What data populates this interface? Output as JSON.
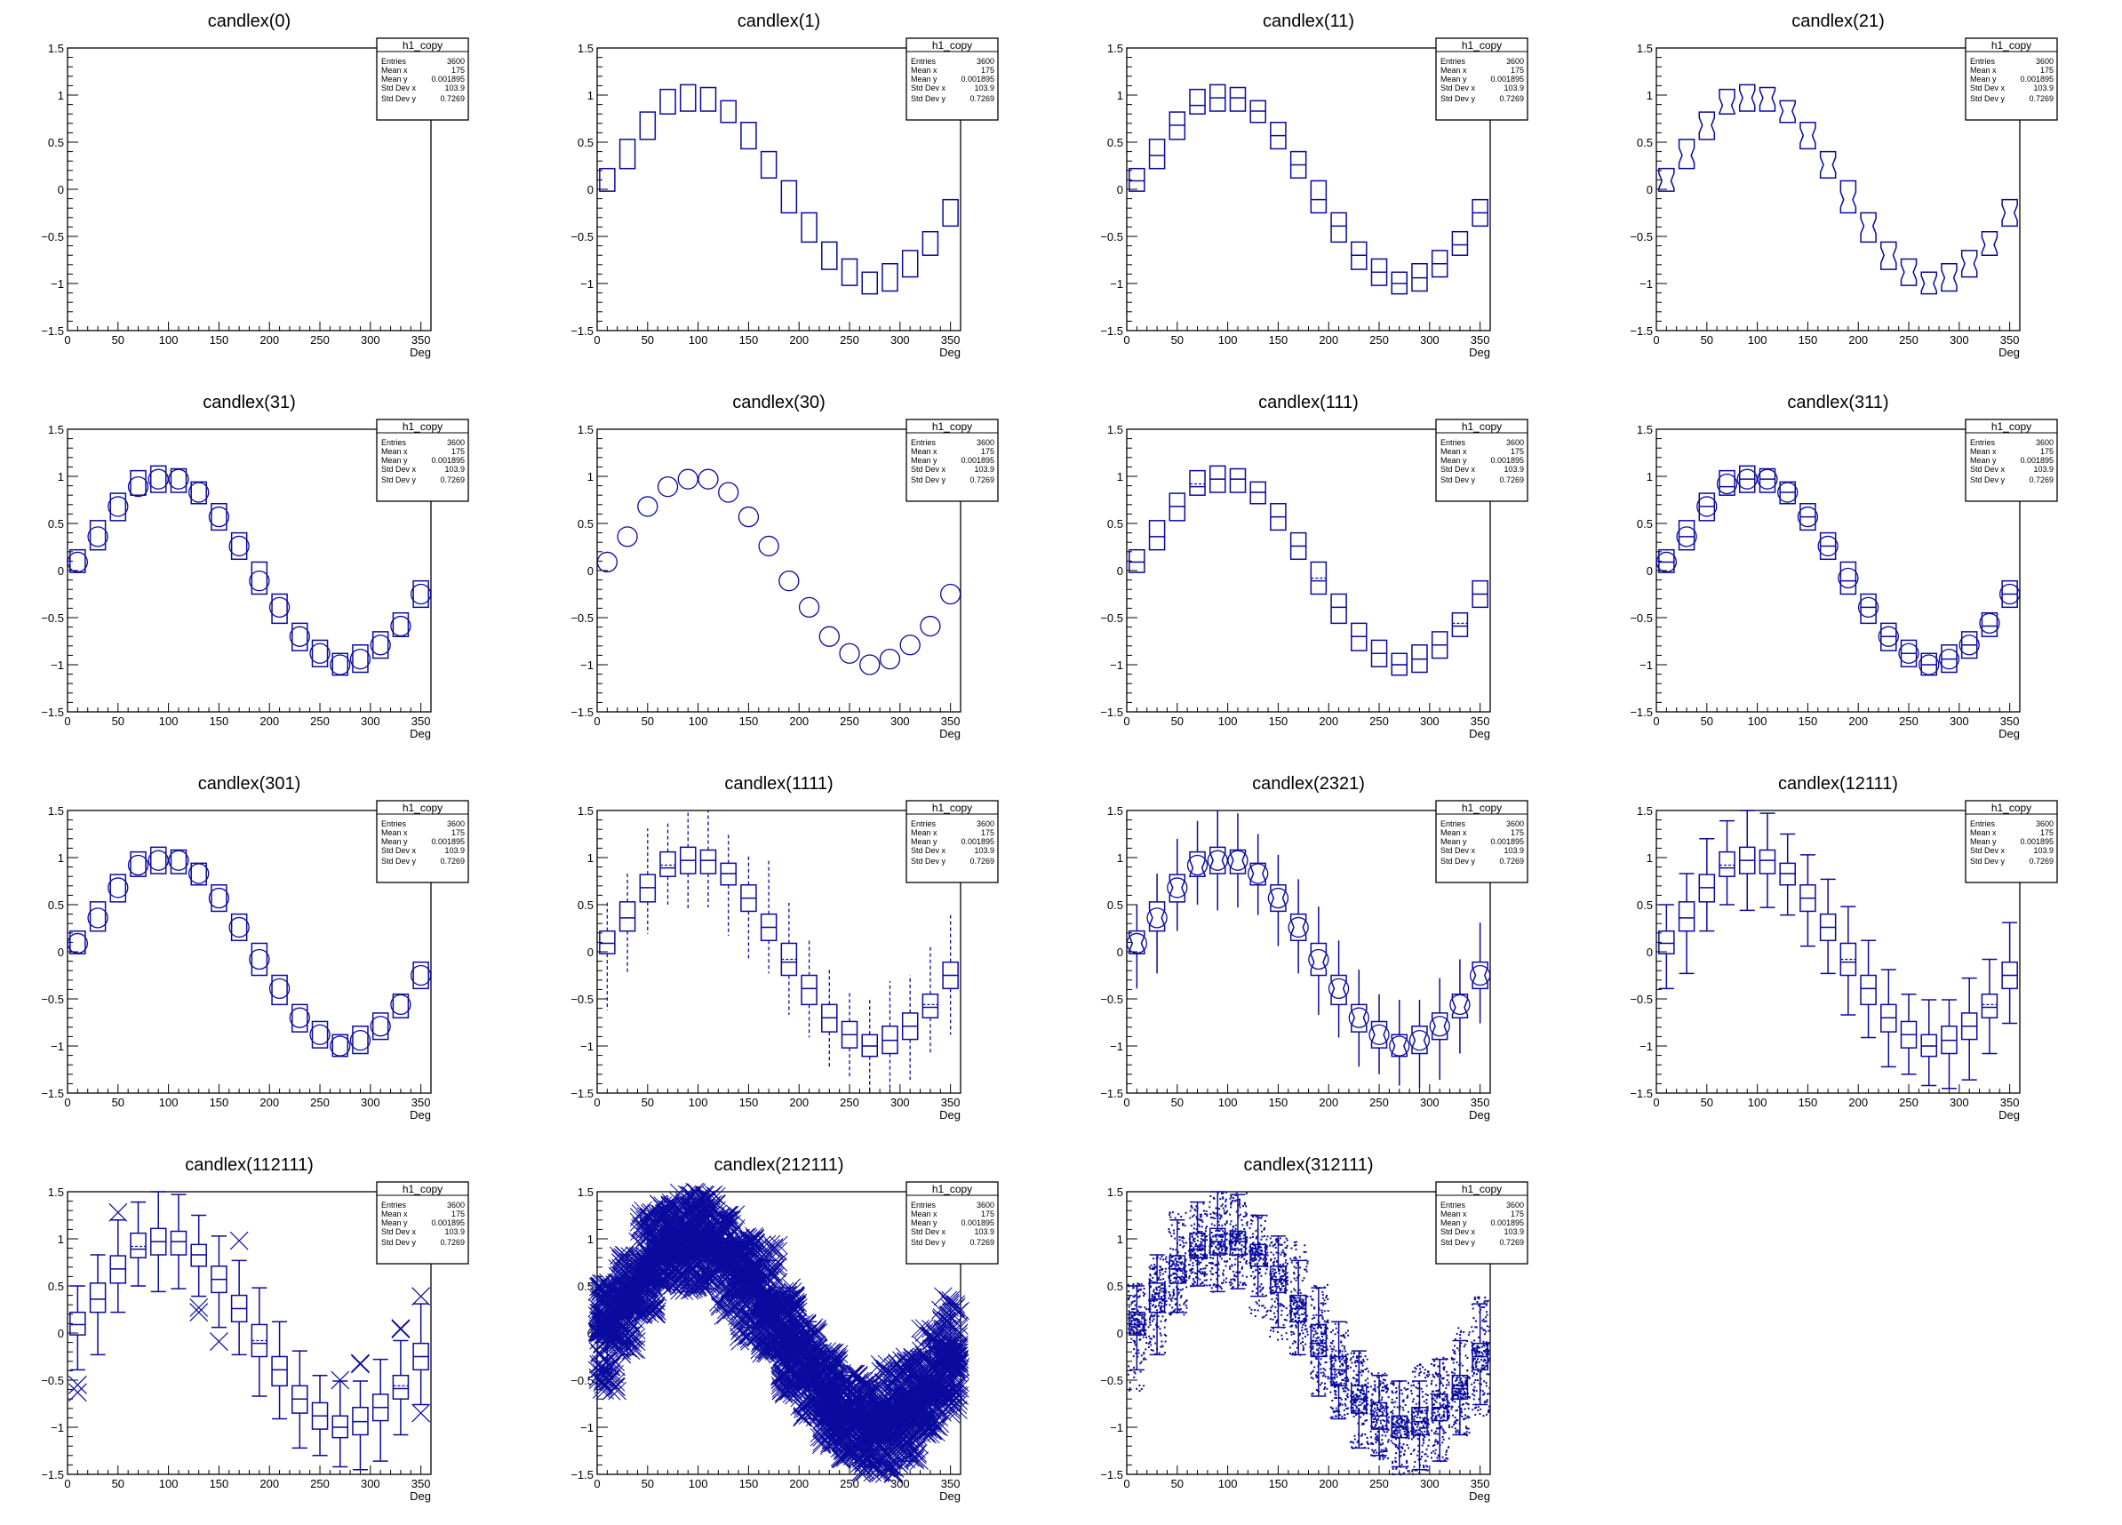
{
  "colors": {
    "series": "#0a0a9e",
    "axes": "#000000",
    "background": "#ffffff"
  },
  "chart_data": {
    "type": "box",
    "axes": {
      "xlabel": "Deg",
      "xlim": [
        0,
        360
      ],
      "ylim": [
        -1.5,
        1.5
      ],
      "xtick_values": [
        0,
        50,
        100,
        150,
        200,
        250,
        300,
        350
      ],
      "xtick_labels": [
        "0",
        "50",
        "100",
        "150",
        "200",
        "250",
        "300",
        "350"
      ],
      "ytick_values": [
        1.5,
        1,
        0.5,
        0,
        -0.5,
        -1,
        -1.5
      ],
      "ytick_labels": [
        "1.5",
        "1",
        "0.5",
        "0",
        "−0.5",
        "−1",
        "−1.5"
      ],
      "grid": false
    },
    "stats_box": {
      "name": "h1_copy",
      "rows": [
        {
          "label": "Entries",
          "value": "3600"
        },
        {
          "label": "Mean x",
          "value": "175"
        },
        {
          "label": "Mean y",
          "value": "0.001895"
        },
        {
          "label": "Std Dev x",
          "value": "103.9"
        },
        {
          "label": "Std Dev y",
          "value": "0.7269"
        }
      ],
      "placement": "top-right"
    },
    "histogram": {
      "x": [
        10,
        30,
        50,
        70,
        90,
        110,
        130,
        150,
        170,
        190,
        210,
        230,
        250,
        270,
        290,
        310,
        330,
        350
      ],
      "q1": [
        -0.02,
        0.22,
        0.53,
        0.8,
        0.83,
        0.83,
        0.71,
        0.43,
        0.12,
        -0.25,
        -0.56,
        -0.85,
        -1.02,
        -1.11,
        -1.08,
        -0.93,
        -0.7,
        -0.39
      ],
      "median": [
        0.09,
        0.36,
        0.68,
        0.89,
        0.97,
        0.97,
        0.83,
        0.57,
        0.26,
        -0.11,
        -0.39,
        -0.7,
        -0.88,
        -1.0,
        -0.94,
        -0.79,
        -0.59,
        -0.25
      ],
      "q3": [
        0.22,
        0.53,
        0.82,
        1.06,
        1.11,
        1.08,
        0.94,
        0.71,
        0.4,
        0.09,
        -0.25,
        -0.56,
        -0.74,
        -0.88,
        -0.79,
        -0.65,
        -0.45,
        -0.11
      ],
      "mean": [
        0.09,
        0.36,
        0.68,
        0.92,
        0.97,
        0.97,
        0.83,
        0.57,
        0.26,
        -0.08,
        -0.39,
        -0.7,
        -0.88,
        -1.0,
        -0.94,
        -0.79,
        -0.56,
        -0.25
      ],
      "whisker_lo": [
        -0.39,
        -0.23,
        0.22,
        0.5,
        0.44,
        0.47,
        0.39,
        0.06,
        -0.23,
        -0.67,
        -0.91,
        -1.22,
        -1.3,
        -1.42,
        -1.45,
        -1.36,
        -1.08,
        -0.76
      ],
      "whisker_hi": [
        0.5,
        0.83,
        1.2,
        1.39,
        1.5,
        1.47,
        1.25,
        1.03,
        0.77,
        0.48,
        0.12,
        -0.19,
        -0.45,
        -0.51,
        -0.51,
        -0.28,
        -0.08,
        0.31
      ],
      "min": [
        -0.62,
        -0.23,
        0.19,
        0.5,
        0.44,
        0.47,
        0.17,
        -0.09,
        -0.23,
        -0.67,
        -0.91,
        -1.22,
        -1.35,
        -1.5,
        -1.5,
        -1.36,
        -1.08,
        -0.88
      ],
      "max": [
        0.54,
        0.83,
        1.31,
        1.39,
        1.5,
        1.5,
        1.26,
        1.03,
        0.98,
        0.52,
        0.12,
        -0.19,
        -0.42,
        -0.5,
        -0.31,
        -0.25,
        0.06,
        0.39
      ],
      "outliers": [
        [
          -0.55,
          -0.63
        ],
        [],
        [
          1.28
        ],
        [],
        [],
        [],
        [
          0.27,
          0.22
        ],
        [
          -0.09
        ],
        [
          0.98
        ],
        [],
        [],
        [],
        [],
        [
          -0.5
        ],
        [
          -0.32,
          -0.33
        ],
        [],
        [
          0.04,
          0.05
        ],
        [
          0.39,
          -0.85
        ]
      ]
    },
    "panels": [
      {
        "title": "candlex(0)",
        "option": "0"
      },
      {
        "title": "candlex(1)",
        "option": "1"
      },
      {
        "title": "candlex(11)",
        "option": "11"
      },
      {
        "title": "candlex(21)",
        "option": "21"
      },
      {
        "title": "candlex(31)",
        "option": "31"
      },
      {
        "title": "candlex(30)",
        "option": "30"
      },
      {
        "title": "candlex(111)",
        "option": "111"
      },
      {
        "title": "candlex(311)",
        "option": "311"
      },
      {
        "title": "candlex(301)",
        "option": "301"
      },
      {
        "title": "candlex(1111)",
        "option": "1111"
      },
      {
        "title": "candlex(2321)",
        "option": "2321"
      },
      {
        "title": "candlex(12111)",
        "option": "12111"
      },
      {
        "title": "candlex(112111)",
        "option": "112111"
      },
      {
        "title": "candlex(212111)",
        "option": "212111"
      },
      {
        "title": "candlex(312111)",
        "option": "312111"
      }
    ]
  }
}
